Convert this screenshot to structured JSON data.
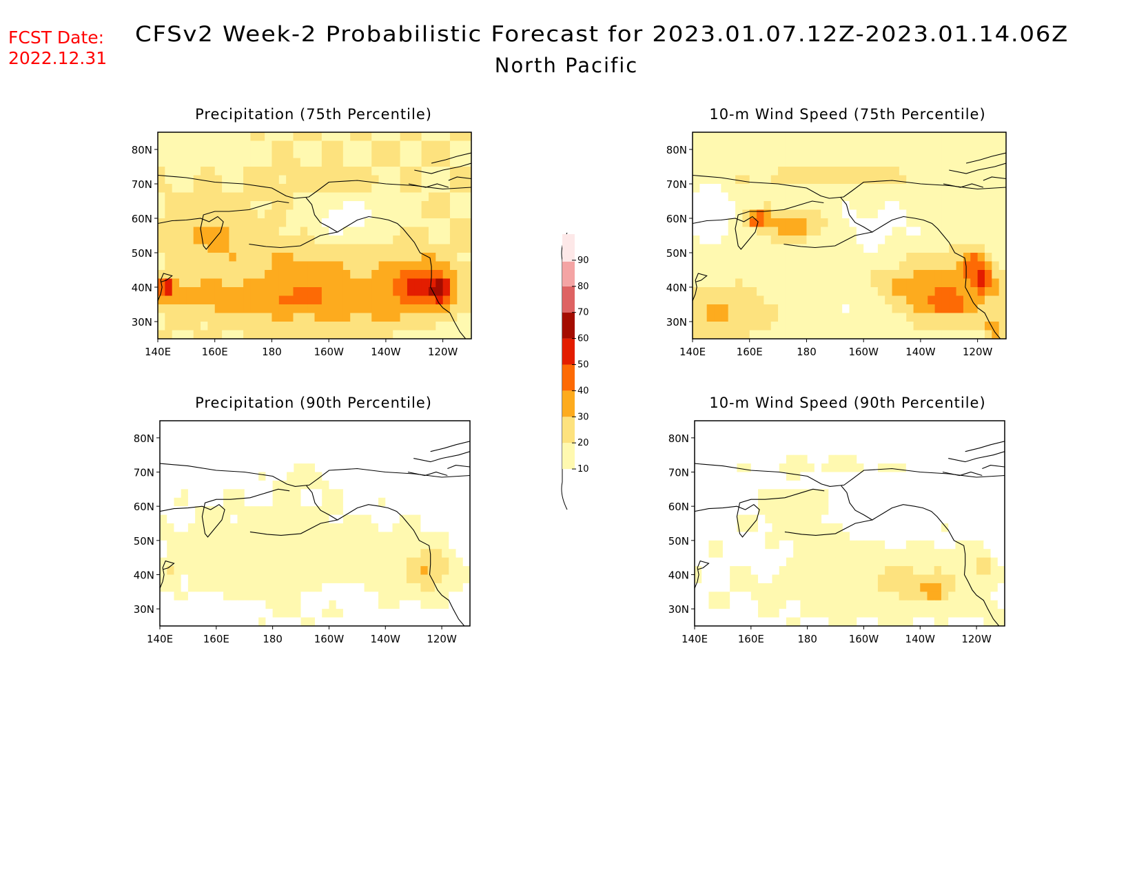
{
  "header": {
    "fcst_label": "FCST Date:",
    "fcst_date": "2022.12.31",
    "title": "CFSv2 Week-2 Probabilistic Forecast for 2023.01.07.12Z-2023.01.14.06Z",
    "subtitle": "North Pacific"
  },
  "colors": {
    "levels": [
      "#ffffff",
      "#fff9b0",
      "#fde27e",
      "#fdab1e",
      "#fd6a05",
      "#e31d00",
      "#a40c00",
      "#de6363",
      "#f4a4a4",
      "#fde8e8"
    ],
    "background": "#ffffff",
    "coast": "#000000"
  },
  "colorbar": {
    "ticks": [
      "10",
      "20",
      "30",
      "40",
      "50",
      "60",
      "70",
      "80",
      "90"
    ]
  },
  "axes": {
    "lon_ticks": [
      "140E",
      "160E",
      "180",
      "160W",
      "140W",
      "120W"
    ],
    "lat_ticks": [
      "80N",
      "70N",
      "60N",
      "50N",
      "40N",
      "30N"
    ]
  },
  "panels": [
    {
      "title": "Precipitation (75th Percentile)"
    },
    {
      "title": "10-m Wind Speed (75th Percentile)"
    },
    {
      "title": "Precipitation (90th Percentile)"
    },
    {
      "title": "10-m Wind Speed (90th Percentile)"
    }
  ]
}
